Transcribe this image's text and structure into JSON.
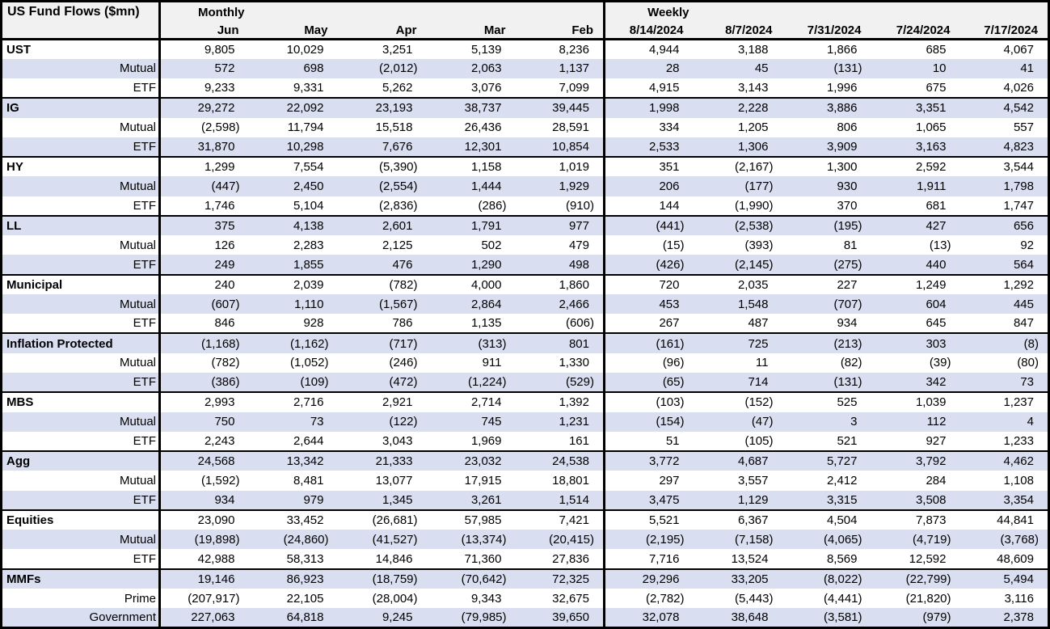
{
  "table": {
    "corner_label": "US Fund Flows ($mn)",
    "sections": [
      {
        "label": "Monthly",
        "columns": [
          "Jun",
          "May",
          "Apr",
          "Mar",
          "Feb"
        ]
      },
      {
        "label": "Weekly",
        "columns": [
          "8/14/2024",
          "8/7/2024",
          "7/31/2024",
          "7/24/2024",
          "7/17/2024"
        ]
      }
    ],
    "groups": [
      {
        "category": "UST",
        "rows": [
          {
            "label": "UST",
            "values": [
              "9,805",
              "10,029",
              "3,251",
              "5,139",
              "8,236",
              "4,944",
              "3,188",
              "1,866",
              "685",
              "4,067"
            ]
          },
          {
            "label": "Mutual",
            "values": [
              "572",
              "698",
              "(2,012)",
              "2,063",
              "1,137",
              "28",
              "45",
              "(131)",
              "10",
              "41"
            ]
          },
          {
            "label": "ETF",
            "values": [
              "9,233",
              "9,331",
              "5,262",
              "3,076",
              "7,099",
              "4,915",
              "3,143",
              "1,996",
              "675",
              "4,026"
            ]
          }
        ]
      },
      {
        "category": "IG",
        "rows": [
          {
            "label": "IG",
            "values": [
              "29,272",
              "22,092",
              "23,193",
              "38,737",
              "39,445",
              "1,998",
              "2,228",
              "3,886",
              "3,351",
              "4,542"
            ]
          },
          {
            "label": "Mutual",
            "values": [
              "(2,598)",
              "11,794",
              "15,518",
              "26,436",
              "28,591",
              "334",
              "1,205",
              "806",
              "1,065",
              "557"
            ]
          },
          {
            "label": "ETF",
            "values": [
              "31,870",
              "10,298",
              "7,676",
              "12,301",
              "10,854",
              "2,533",
              "1,306",
              "3,909",
              "3,163",
              "4,823"
            ]
          }
        ]
      },
      {
        "category": "HY",
        "rows": [
          {
            "label": "HY",
            "values": [
              "1,299",
              "7,554",
              "(5,390)",
              "1,158",
              "1,019",
              "351",
              "(2,167)",
              "1,300",
              "2,592",
              "3,544"
            ]
          },
          {
            "label": "Mutual",
            "values": [
              "(447)",
              "2,450",
              "(2,554)",
              "1,444",
              "1,929",
              "206",
              "(177)",
              "930",
              "1,911",
              "1,798"
            ]
          },
          {
            "label": "ETF",
            "values": [
              "1,746",
              "5,104",
              "(2,836)",
              "(286)",
              "(910)",
              "144",
              "(1,990)",
              "370",
              "681",
              "1,747"
            ]
          }
        ]
      },
      {
        "category": "LL",
        "rows": [
          {
            "label": "LL",
            "values": [
              "375",
              "4,138",
              "2,601",
              "1,791",
              "977",
              "(441)",
              "(2,538)",
              "(195)",
              "427",
              "656"
            ]
          },
          {
            "label": "Mutual",
            "values": [
              "126",
              "2,283",
              "2,125",
              "502",
              "479",
              "(15)",
              "(393)",
              "81",
              "(13)",
              "92"
            ]
          },
          {
            "label": "ETF",
            "values": [
              "249",
              "1,855",
              "476",
              "1,290",
              "498",
              "(426)",
              "(2,145)",
              "(275)",
              "440",
              "564"
            ]
          }
        ]
      },
      {
        "category": "Municipal",
        "rows": [
          {
            "label": "Municipal",
            "values": [
              "240",
              "2,039",
              "(782)",
              "4,000",
              "1,860",
              "720",
              "2,035",
              "227",
              "1,249",
              "1,292"
            ]
          },
          {
            "label": "Mutual",
            "values": [
              "(607)",
              "1,110",
              "(1,567)",
              "2,864",
              "2,466",
              "453",
              "1,548",
              "(707)",
              "604",
              "445"
            ]
          },
          {
            "label": "ETF",
            "values": [
              "846",
              "928",
              "786",
              "1,135",
              "(606)",
              "267",
              "487",
              "934",
              "645",
              "847"
            ]
          }
        ]
      },
      {
        "category": "Inflation Protected",
        "rows": [
          {
            "label": "Inflation Protected",
            "values": [
              "(1,168)",
              "(1,162)",
              "(717)",
              "(313)",
              "801",
              "(161)",
              "725",
              "(213)",
              "303",
              "(8)"
            ]
          },
          {
            "label": "Mutual",
            "values": [
              "(782)",
              "(1,052)",
              "(246)",
              "911",
              "1,330",
              "(96)",
              "11",
              "(82)",
              "(39)",
              "(80)"
            ]
          },
          {
            "label": "ETF",
            "values": [
              "(386)",
              "(109)",
              "(472)",
              "(1,224)",
              "(529)",
              "(65)",
              "714",
              "(131)",
              "342",
              "73"
            ]
          }
        ]
      },
      {
        "category": "MBS",
        "rows": [
          {
            "label": "MBS",
            "values": [
              "2,993",
              "2,716",
              "2,921",
              "2,714",
              "1,392",
              "(103)",
              "(152)",
              "525",
              "1,039",
              "1,237"
            ]
          },
          {
            "label": "Mutual",
            "values": [
              "750",
              "73",
              "(122)",
              "745",
              "1,231",
              "(154)",
              "(47)",
              "3",
              "112",
              "4"
            ]
          },
          {
            "label": "ETF",
            "values": [
              "2,243",
              "2,644",
              "3,043",
              "1,969",
              "161",
              "51",
              "(105)",
              "521",
              "927",
              "1,233"
            ]
          }
        ]
      },
      {
        "category": "Agg",
        "rows": [
          {
            "label": "Agg",
            "values": [
              "24,568",
              "13,342",
              "21,333",
              "23,032",
              "24,538",
              "3,772",
              "4,687",
              "5,727",
              "3,792",
              "4,462"
            ]
          },
          {
            "label": "Mutual",
            "values": [
              "(1,592)",
              "8,481",
              "13,077",
              "17,915",
              "18,801",
              "297",
              "3,557",
              "2,412",
              "284",
              "1,108"
            ]
          },
          {
            "label": "ETF",
            "values": [
              "934",
              "979",
              "1,345",
              "3,261",
              "1,514",
              "3,475",
              "1,129",
              "3,315",
              "3,508",
              "3,354"
            ]
          }
        ]
      },
      {
        "category": "Equities",
        "rows": [
          {
            "label": "Equities",
            "values": [
              "23,090",
              "33,452",
              "(26,681)",
              "57,985",
              "7,421",
              "5,521",
              "6,367",
              "4,504",
              "7,873",
              "44,841"
            ]
          },
          {
            "label": "Mutual",
            "values": [
              "(19,898)",
              "(24,860)",
              "(41,527)",
              "(13,374)",
              "(20,415)",
              "(2,195)",
              "(7,158)",
              "(4,065)",
              "(4,719)",
              "(3,768)"
            ]
          },
          {
            "label": "ETF",
            "values": [
              "42,988",
              "58,313",
              "14,846",
              "71,360",
              "27,836",
              "7,716",
              "13,524",
              "8,569",
              "12,592",
              "48,609"
            ]
          }
        ]
      },
      {
        "category": "MMFs",
        "rows": [
          {
            "label": "MMFs",
            "values": [
              "19,146",
              "86,923",
              "(18,759)",
              "(70,642)",
              "72,325",
              "29,296",
              "33,205",
              "(8,022)",
              "(22,799)",
              "5,494"
            ]
          },
          {
            "label": "Prime",
            "values": [
              "(207,917)",
              "22,105",
              "(28,004)",
              "9,343",
              "32,675",
              "(2,782)",
              "(5,443)",
              "(4,441)",
              "(21,820)",
              "3,116"
            ]
          },
          {
            "label": "Government",
            "values": [
              "227,063",
              "64,818",
              "9,245",
              "(79,985)",
              "39,650",
              "32,078",
              "38,648",
              "(3,581)",
              "(979)",
              "2,378"
            ]
          }
        ]
      }
    ]
  },
  "colors": {
    "stripe": "#d9def1",
    "header_bg": "#f1f1f1",
    "border": "#000000",
    "text": "#000000"
  }
}
